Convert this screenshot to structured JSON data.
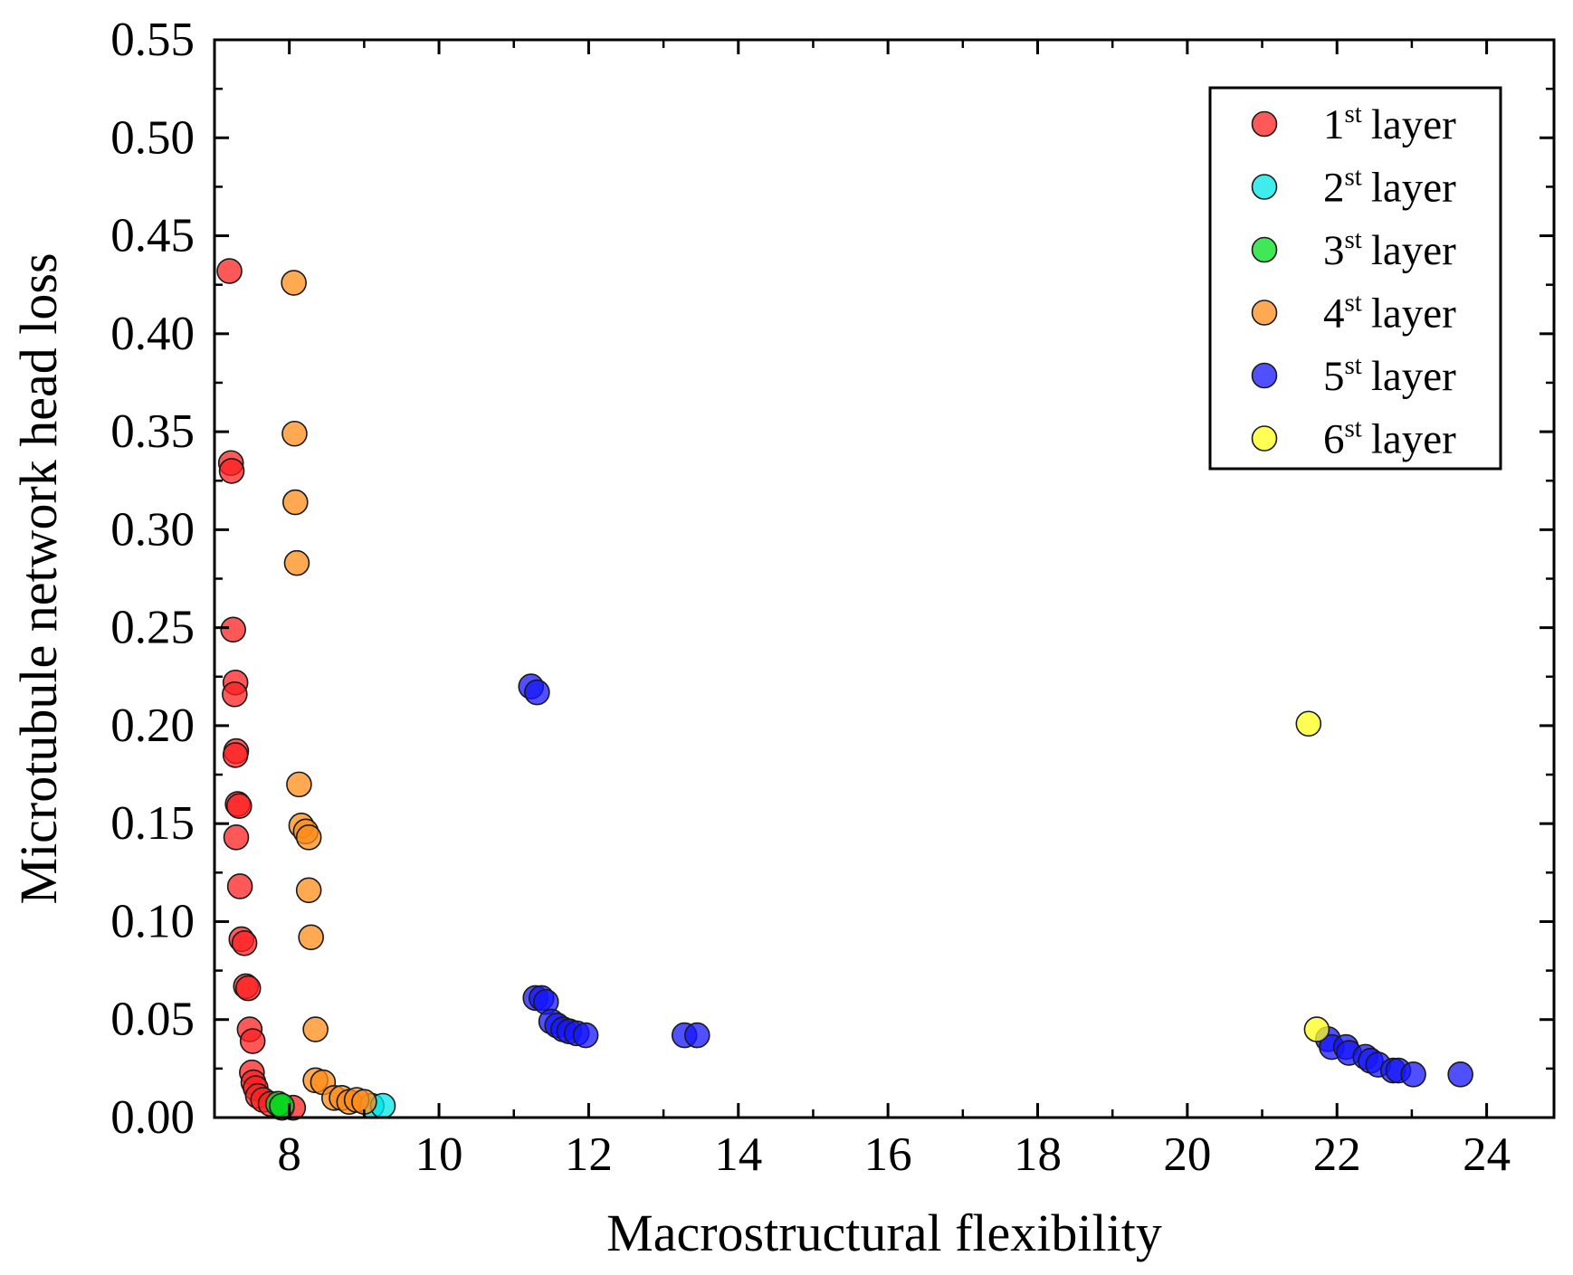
{
  "chart_data": {
    "type": "scatter",
    "xlabel": "Macrostructural flexibility",
    "ylabel": "Microtubule network head loss",
    "xlim": [
      7.0,
      24.9
    ],
    "ylim": [
      0.0,
      0.55
    ],
    "x_ticks": [
      "8",
      "10",
      "12",
      "14",
      "16",
      "18",
      "20",
      "22",
      "24"
    ],
    "y_ticks": [
      "0.00",
      "0.05",
      "0.10",
      "0.15",
      "0.20",
      "0.25",
      "0.30",
      "0.35",
      "0.40",
      "0.45",
      "0.50",
      "0.55"
    ],
    "legend_position": "top-right",
    "series": [
      {
        "name": "1",
        "sup": "st",
        "suffix": "layer",
        "color": "#ff2020",
        "points": [
          [
            7.2,
            0.432
          ],
          [
            7.22,
            0.334
          ],
          [
            7.23,
            0.33
          ],
          [
            7.25,
            0.249
          ],
          [
            7.28,
            0.222
          ],
          [
            7.27,
            0.216
          ],
          [
            7.29,
            0.187
          ],
          [
            7.28,
            0.185
          ],
          [
            7.31,
            0.16
          ],
          [
            7.33,
            0.159
          ],
          [
            7.29,
            0.143
          ],
          [
            7.34,
            0.118
          ],
          [
            7.36,
            0.091
          ],
          [
            7.4,
            0.089
          ],
          [
            7.42,
            0.067
          ],
          [
            7.45,
            0.066
          ],
          [
            7.47,
            0.045
          ],
          [
            7.51,
            0.039
          ],
          [
            7.5,
            0.023
          ],
          [
            7.52,
            0.018
          ],
          [
            7.55,
            0.015
          ],
          [
            7.58,
            0.011
          ],
          [
            7.65,
            0.009
          ],
          [
            7.75,
            0.007
          ],
          [
            7.9,
            0.005
          ],
          [
            8.05,
            0.005
          ]
        ]
      },
      {
        "name": "2",
        "sup": "st",
        "suffix": "layer",
        "color": "#00e5e5",
        "points": [
          [
            9.1,
            0.006
          ],
          [
            9.25,
            0.006
          ]
        ]
      },
      {
        "name": "3",
        "sup": "st",
        "suffix": "layer",
        "color": "#00e020",
        "points": [
          [
            7.85,
            0.007
          ],
          [
            7.9,
            0.006
          ]
        ]
      },
      {
        "name": "4",
        "sup": "st",
        "suffix": "layer",
        "color": "#ff8c1a",
        "points": [
          [
            8.06,
            0.426
          ],
          [
            8.07,
            0.349
          ],
          [
            8.08,
            0.314
          ],
          [
            8.1,
            0.283
          ],
          [
            8.13,
            0.17
          ],
          [
            8.16,
            0.149
          ],
          [
            8.22,
            0.146
          ],
          [
            8.26,
            0.143
          ],
          [
            8.26,
            0.116
          ],
          [
            8.29,
            0.092
          ],
          [
            8.35,
            0.045
          ],
          [
            8.35,
            0.019
          ],
          [
            8.45,
            0.018
          ],
          [
            8.6,
            0.01
          ],
          [
            8.7,
            0.01
          ],
          [
            8.8,
            0.008
          ],
          [
            8.9,
            0.009
          ],
          [
            9.0,
            0.008
          ]
        ]
      },
      {
        "name": "5",
        "sup": "st",
        "suffix": "layer",
        "color": "#1515ff",
        "points": [
          [
            11.23,
            0.22
          ],
          [
            11.31,
            0.217
          ],
          [
            11.29,
            0.061
          ],
          [
            11.37,
            0.061
          ],
          [
            11.43,
            0.059
          ],
          [
            11.5,
            0.049
          ],
          [
            11.58,
            0.047
          ],
          [
            11.66,
            0.045
          ],
          [
            11.74,
            0.044
          ],
          [
            11.84,
            0.043
          ],
          [
            11.96,
            0.042
          ],
          [
            13.28,
            0.042
          ],
          [
            13.45,
            0.042
          ],
          [
            21.88,
            0.04
          ],
          [
            21.93,
            0.036
          ],
          [
            22.12,
            0.036
          ],
          [
            22.16,
            0.033
          ],
          [
            22.38,
            0.031
          ],
          [
            22.45,
            0.029
          ],
          [
            22.55,
            0.027
          ],
          [
            22.75,
            0.024
          ],
          [
            22.82,
            0.024
          ],
          [
            23.02,
            0.022
          ],
          [
            23.65,
            0.022
          ]
        ]
      },
      {
        "name": "6",
        "sup": "st",
        "suffix": "layer",
        "color": "#ffff1a",
        "points": [
          [
            21.62,
            0.201
          ],
          [
            21.73,
            0.045
          ]
        ]
      }
    ]
  }
}
